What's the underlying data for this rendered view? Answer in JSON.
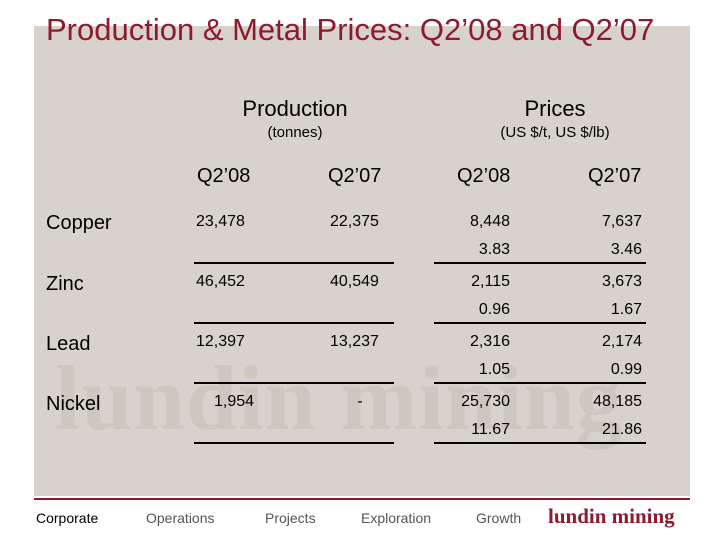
{
  "title": "Production & Metal Prices: Q2’08 and Q2’07",
  "watermark": "lundin mining",
  "groups": {
    "production": {
      "label": "Production",
      "unit": "(tonnes)"
    },
    "prices": {
      "label": "Prices",
      "unit": "(US $/t, US $/lb)"
    }
  },
  "columns": [
    "Q2’08",
    "Q2’07",
    "Q2’08",
    "Q2’07"
  ],
  "rows": [
    {
      "metal": "Copper",
      "prod_q208": "23,478",
      "prod_q207": "22,375",
      "price_q208_t": "8,448",
      "price_q208_lb": "3.83",
      "price_q207_t": "7,637",
      "price_q207_lb": "3.46"
    },
    {
      "metal": "Zinc",
      "prod_q208": "46,452",
      "prod_q207": "40,549",
      "price_q208_t": "2,115",
      "price_q208_lb": "0.96",
      "price_q207_t": "3,673",
      "price_q207_lb": "1.67"
    },
    {
      "metal": "Lead",
      "prod_q208": "12,397",
      "prod_q207": "13,237",
      "price_q208_t": "2,316",
      "price_q208_lb": "1.05",
      "price_q207_t": "2,174",
      "price_q207_lb": "0.99"
    },
    {
      "metal": "Nickel",
      "prod_q208": "1,954",
      "prod_q207": "-",
      "price_q208_t": "25,730",
      "price_q208_lb": "11.67",
      "price_q207_t": "48,185",
      "price_q207_lb": "21.86"
    }
  ],
  "footer": {
    "nav": [
      "Corporate",
      "Operations",
      "Projects",
      "Exploration",
      "Growth"
    ],
    "logo": "lundin mining"
  },
  "colors": {
    "accent": "#8e1a2e",
    "panel": "#d7d3cc"
  }
}
